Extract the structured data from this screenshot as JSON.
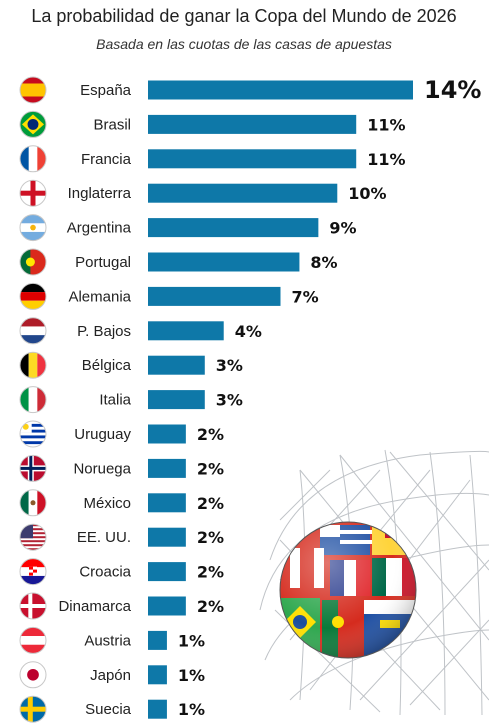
{
  "title": "La probabilidad de ganar la Copa del Mundo de 2026",
  "subtitle": "Basada en las cuotas de las casas de apuestas",
  "colors": {
    "bar": "#0e78a8",
    "text": "#222222"
  },
  "chart_data": {
    "type": "bar",
    "orientation": "horizontal",
    "title": "La probabilidad de ganar la Copa del Mundo de 2026",
    "subtitle": "Basada en las cuotas de las casas de apuestas",
    "categories": [
      "España",
      "Brasil",
      "Francia",
      "Inglaterra",
      "Argentina",
      "Portugal",
      "Alemania",
      "P. Bajos",
      "Bélgica",
      "Italia",
      "Uruguay",
      "Noruega",
      "México",
      "EE. UU.",
      "Croacia",
      "Dinamarca",
      "Austria",
      "Japón",
      "Suecia"
    ],
    "values": [
      14,
      11,
      11,
      10,
      9,
      8,
      7,
      4,
      3,
      3,
      2,
      2,
      2,
      2,
      2,
      2,
      1,
      1,
      1
    ],
    "value_labels": [
      "14%",
      "11%",
      "11%",
      "10%",
      "9%",
      "8%",
      "7%",
      "4%",
      "3%",
      "3%",
      "2%",
      "2%",
      "2%",
      "2%",
      "2%",
      "2%",
      "1%",
      "1%",
      "1%"
    ],
    "xlim": [
      0,
      14
    ],
    "grid": false,
    "legend": "none",
    "flag_icons": [
      "spain-flag-icon",
      "brazil-flag-icon",
      "france-flag-icon",
      "england-flag-icon",
      "argentina-flag-icon",
      "portugal-flag-icon",
      "germany-flag-icon",
      "netherlands-flag-icon",
      "belgium-flag-icon",
      "italy-flag-icon",
      "uruguay-flag-icon",
      "norway-flag-icon",
      "mexico-flag-icon",
      "usa-flag-icon",
      "croatia-flag-icon",
      "denmark-flag-icon",
      "austria-flag-icon",
      "japan-flag-icon",
      "sweden-flag-icon"
    ]
  },
  "illustration": "soccer-ball-flags-in-net-icon"
}
